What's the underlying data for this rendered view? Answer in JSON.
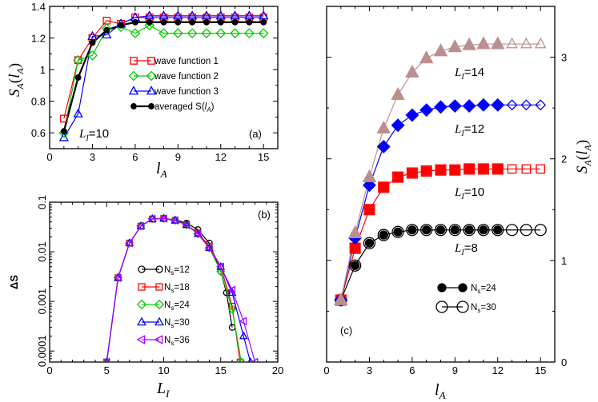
{
  "chart_data": [
    {
      "id": "a",
      "type": "line",
      "panel_label": "(a)",
      "annotation": "L_I=10",
      "xlabel": "l_A",
      "ylabel": "S_A(l_A)",
      "xlim": [
        0,
        16
      ],
      "ylim": [
        0.5,
        1.4
      ],
      "xticks": [
        0,
        3,
        6,
        9,
        12,
        15
      ],
      "yticks": [
        0.6,
        0.8,
        1,
        1.2,
        1.4
      ],
      "x": [
        1,
        2,
        3,
        4,
        5,
        6,
        7,
        8,
        9,
        10,
        11,
        12,
        13,
        14,
        15
      ],
      "series": [
        {
          "name": "wave function 1",
          "color": "#ff0000",
          "marker": "square",
          "values": [
            0.69,
            1.06,
            1.2,
            1.31,
            1.29,
            1.33,
            1.33,
            1.33,
            1.33,
            1.33,
            1.33,
            1.33,
            1.33,
            1.33,
            1.33
          ]
        },
        {
          "name": "wave function 2",
          "color": "#00cc00",
          "marker": "diamond",
          "values": [
            0.6,
            1.06,
            1.09,
            1.26,
            1.27,
            1.23,
            1.28,
            1.23,
            1.23,
            1.23,
            1.23,
            1.23,
            1.23,
            1.23,
            1.23
          ]
        },
        {
          "name": "wave function 3",
          "color": "#0000ff",
          "marker": "triangle",
          "values": [
            0.57,
            0.72,
            1.21,
            1.22,
            1.29,
            1.33,
            1.34,
            1.34,
            1.34,
            1.34,
            1.34,
            1.34,
            1.34,
            1.34,
            1.34
          ]
        },
        {
          "name": "averaged S(l_A)",
          "color": "#000000",
          "marker": "circle-filled",
          "values": [
            0.61,
            0.95,
            1.17,
            1.25,
            1.28,
            1.3,
            1.3,
            1.3,
            1.3,
            1.3,
            1.3,
            1.3,
            1.3,
            1.3,
            1.3
          ]
        }
      ]
    },
    {
      "id": "b",
      "type": "line",
      "panel_label": "(b)",
      "xlabel": "L_I",
      "ylabel": "ΔS",
      "xscale": "linear",
      "yscale": "log",
      "xlim": [
        0,
        20
      ],
      "ylim": [
        6e-05,
        0.1
      ],
      "xticks": [
        0,
        5,
        10,
        15,
        20
      ],
      "ytick_labels": [
        "0.0001",
        "0.001",
        "0.01",
        "0.1"
      ],
      "yticks": [
        0.0001,
        0.001,
        0.01,
        0.1
      ],
      "series": [
        {
          "name": "N_s=12",
          "color": "#000000",
          "marker": "circle",
          "x": [
            5,
            6,
            7,
            8,
            9,
            10,
            11,
            12,
            13,
            14,
            15,
            15.5,
            16
          ],
          "values": [
            6e-05,
            0.003,
            0.015,
            0.033,
            0.046,
            0.047,
            0.044,
            0.038,
            0.028,
            0.015,
            0.004,
            0.0015,
            0.0003
          ]
        },
        {
          "name": "N_s=18",
          "color": "#ff0000",
          "marker": "square",
          "x": [
            5,
            6,
            7,
            8,
            9,
            10,
            11,
            12,
            13,
            14,
            15,
            16,
            16.7
          ],
          "values": [
            6e-05,
            0.003,
            0.015,
            0.033,
            0.046,
            0.047,
            0.043,
            0.035,
            0.024,
            0.013,
            0.005,
            0.0008,
            6e-05
          ]
        },
        {
          "name": "N_s=24",
          "color": "#00cc00",
          "marker": "diamond",
          "x": [
            5,
            6,
            7,
            8,
            9,
            10,
            11,
            12,
            13,
            14,
            15,
            16,
            16.8
          ],
          "values": [
            6e-05,
            0.003,
            0.015,
            0.033,
            0.046,
            0.047,
            0.043,
            0.035,
            0.023,
            0.012,
            0.004,
            0.0007,
            6e-05
          ]
        },
        {
          "name": "N_s=30",
          "color": "#0000ff",
          "marker": "triangle",
          "x": [
            5,
            6,
            7,
            8,
            9,
            10,
            11,
            12,
            13,
            14,
            15,
            16,
            17,
            17.6
          ],
          "values": [
            6e-05,
            0.003,
            0.015,
            0.033,
            0.046,
            0.047,
            0.043,
            0.035,
            0.023,
            0.012,
            0.005,
            0.0015,
            0.0002,
            6e-05
          ]
        },
        {
          "name": "N_s=36",
          "color": "#aa00ff",
          "marker": "triangle-left",
          "x": [
            5,
            6,
            7,
            8,
            9,
            10,
            11,
            12,
            13,
            14,
            15,
            16,
            17,
            18
          ],
          "values": [
            6e-05,
            0.003,
            0.015,
            0.033,
            0.046,
            0.047,
            0.043,
            0.035,
            0.023,
            0.012,
            0.005,
            0.0017,
            0.0004,
            6e-05
          ]
        }
      ]
    },
    {
      "id": "c",
      "type": "line",
      "panel_label": "(c)",
      "xlabel": "l_A",
      "ylabel": "S_A(l_A)",
      "xlim": [
        0,
        16
      ],
      "ylim": [
        0,
        3.5
      ],
      "xticks": [
        0,
        3,
        6,
        9,
        12,
        15
      ],
      "yticks": [
        0,
        1,
        2,
        3
      ],
      "legend": [
        {
          "name": "N_s=24",
          "marker": "circle-filled"
        },
        {
          "name": "N_s=30",
          "marker": "circle-open"
        }
      ],
      "series": [
        {
          "label": "L_I=8",
          "color": "#000000",
          "marker": "circle",
          "x": [
            1,
            2,
            3,
            4,
            5,
            6,
            7,
            8,
            9,
            10,
            11,
            12,
            13,
            14,
            15
          ],
          "values": [
            0.61,
            0.95,
            1.17,
            1.25,
            1.28,
            1.3,
            1.3,
            1.3,
            1.3,
            1.3,
            1.3,
            1.3,
            1.3,
            1.3,
            1.3
          ],
          "filled_upto": 12
        },
        {
          "label": "L_I=10",
          "color": "#ff0000",
          "marker": "square",
          "x": [
            1,
            2,
            3,
            4,
            5,
            6,
            7,
            8,
            9,
            10,
            11,
            12,
            13,
            14,
            15
          ],
          "values": [
            0.61,
            1.12,
            1.5,
            1.72,
            1.82,
            1.86,
            1.88,
            1.89,
            1.89,
            1.9,
            1.9,
            1.9,
            1.9,
            1.9,
            1.9
          ],
          "filled_upto": 12
        },
        {
          "label": "L_I=12",
          "color": "#0000ff",
          "marker": "diamond",
          "x": [
            1,
            2,
            3,
            4,
            5,
            6,
            7,
            8,
            9,
            10,
            11,
            12,
            13,
            14,
            15
          ],
          "values": [
            0.61,
            1.22,
            1.74,
            2.12,
            2.33,
            2.43,
            2.48,
            2.51,
            2.52,
            2.52,
            2.53,
            2.53,
            2.53,
            2.53,
            2.53
          ],
          "filled_upto": 12
        },
        {
          "label": "L_I=14",
          "color": "#bc8f8f",
          "marker": "triangle",
          "x": [
            1,
            2,
            3,
            4,
            5,
            6,
            7,
            8,
            9,
            10,
            11,
            12,
            13,
            14,
            15
          ],
          "values": [
            0.61,
            1.27,
            1.82,
            2.3,
            2.63,
            2.85,
            2.99,
            3.06,
            3.1,
            3.12,
            3.13,
            3.13,
            3.13,
            3.13,
            3.13
          ],
          "filled_upto": 12
        }
      ]
    }
  ]
}
